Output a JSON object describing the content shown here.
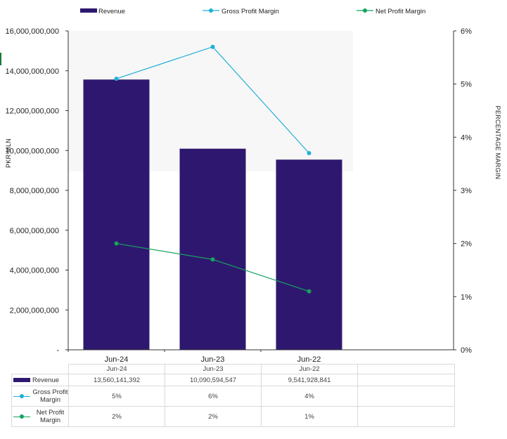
{
  "chart_data": {
    "type": "bar+line",
    "categories": [
      "Jun-24",
      "Jun-23",
      "Jun-22"
    ],
    "series": [
      {
        "name": "Revenue",
        "type": "bar",
        "axis": "left",
        "color": "#2e186f",
        "values": [
          13560141392,
          10090594547,
          9541928841
        ]
      },
      {
        "name": "Gross Profit Margin",
        "type": "line",
        "axis": "right",
        "color": "#1fb0d8",
        "values": [
          5.1,
          5.7,
          3.7
        ]
      },
      {
        "name": "Net Profit Margin",
        "type": "line",
        "axis": "right",
        "color": "#16a35e",
        "values": [
          2.0,
          1.7,
          1.1
        ]
      }
    ],
    "ylabel": "PKR MLN",
    "y2label": "PERCENTAGE MARGIN",
    "ylim": [
      0,
      16000000000
    ],
    "y2lim": [
      0,
      6
    ],
    "yticks": [
      "-",
      "2,000,000,000",
      "4,000,000,000",
      "6,000,000,000",
      "8,000,000,000",
      "10,000,000,000",
      "12,000,000,000",
      "14,000,000,000",
      "16,000,000,000"
    ],
    "y2ticks": [
      "0%",
      "1%",
      "2%",
      "3%",
      "4%",
      "5%",
      "6%"
    ],
    "legend_position": "top",
    "grid": false
  },
  "table": {
    "headers": [
      "Jun-24",
      "Jun-23",
      "Jun-22"
    ],
    "rows": [
      {
        "label": "Revenue",
        "values": [
          "13,560,141,392",
          "10,090,594,547",
          "9,541,928,841"
        ]
      },
      {
        "label": "Gross Profit Margin",
        "values": [
          "5%",
          "6%",
          "4%"
        ]
      },
      {
        "label": "Net Profit Margin",
        "values": [
          "2%",
          "2%",
          "1%"
        ]
      }
    ]
  }
}
